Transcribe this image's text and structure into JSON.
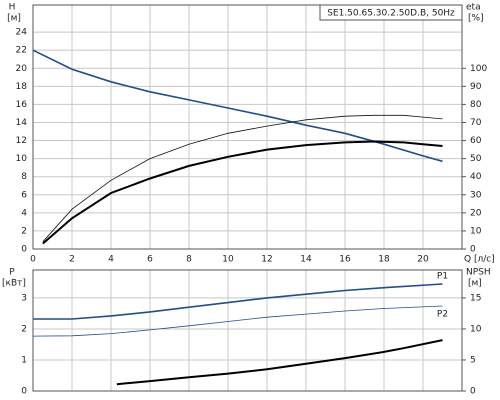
{
  "chart_data": [
    {
      "type": "line",
      "title": "SE1.50.65.30.2.50D.B, 50Hz",
      "y_label": "H",
      "y_unit": "[м]",
      "y2_label": "eta",
      "y2_unit": "[%]",
      "x_label": "Q [л/с]",
      "xlim": [
        0,
        22
      ],
      "xticks": [
        0,
        2,
        4,
        6,
        8,
        10,
        12,
        14,
        16,
        18,
        20
      ],
      "ylim": [
        0,
        27
      ],
      "yticks": [
        0,
        2,
        4,
        6,
        8,
        10,
        12,
        14,
        16,
        18,
        20,
        22,
        24
      ],
      "y2lim": [
        0,
        135
      ],
      "y2ticks": [
        0,
        10,
        20,
        30,
        40,
        50,
        60,
        70,
        80,
        90,
        100
      ],
      "grid": true,
      "series": [
        {
          "color": "#1f4e8c",
          "linewidth": 1.6,
          "x": [
            0,
            2,
            4,
            6,
            8,
            10,
            12,
            14,
            16,
            18,
            20,
            21
          ],
          "values": [
            22,
            19.9,
            18.5,
            17.4,
            16.5,
            15.6,
            14.7,
            13.7,
            12.8,
            11.6,
            10.3,
            9.7
          ]
        },
        {
          "color": "#111111",
          "linewidth": 0.8,
          "axis": "y2",
          "x": [
            0.5,
            2,
            4,
            6,
            8,
            10,
            12,
            14,
            16,
            17.5,
            19,
            20,
            21
          ],
          "values": [
            4,
            22,
            38,
            50,
            58,
            64,
            68,
            71.5,
            73.5,
            74,
            74,
            73,
            72
          ]
        },
        {
          "color": "#000000",
          "linewidth": 2,
          "axis": "y2",
          "x": [
            0.5,
            2,
            4,
            6,
            8,
            10,
            12,
            14,
            16,
            17.5,
            19,
            20,
            21
          ],
          "values": [
            3,
            17,
            31,
            39,
            46,
            51,
            55,
            57.5,
            59,
            59.5,
            59,
            58,
            57
          ]
        }
      ]
    },
    {
      "type": "line",
      "y_label": "P",
      "y_unit": "[кВт]",
      "y2_label": "NPSH",
      "y2_unit": "[м]",
      "xlim": [
        0,
        22
      ],
      "xticks": [
        0,
        2,
        4,
        6,
        8,
        10,
        12,
        14,
        16,
        18,
        20
      ],
      "ylim": [
        0,
        3.9
      ],
      "yticks": [
        0,
        1,
        2,
        3
      ],
      "y2lim": [
        0,
        19.5
      ],
      "y2ticks": [
        0,
        5,
        10,
        15
      ],
      "grid": true,
      "series": [
        {
          "name": "P1",
          "color": "#1f4e8c",
          "linewidth": 1.6,
          "x": [
            0,
            2,
            4,
            6,
            8,
            10,
            12,
            14,
            16,
            18,
            21
          ],
          "values": [
            2.32,
            2.32,
            2.42,
            2.55,
            2.7,
            2.85,
            3.0,
            3.12,
            3.24,
            3.33,
            3.45
          ]
        },
        {
          "name": "P2",
          "color": "#1f4e8c",
          "linewidth": 0.8,
          "x": [
            0,
            2,
            4,
            6,
            8,
            10,
            12,
            14,
            16,
            18,
            21
          ],
          "values": [
            1.77,
            1.78,
            1.85,
            1.97,
            2.1,
            2.24,
            2.38,
            2.48,
            2.58,
            2.66,
            2.74
          ]
        },
        {
          "color": "#000000",
          "linewidth": 2,
          "axis": "y2",
          "x": [
            4.3,
            6,
            8,
            10,
            12,
            14,
            16,
            18,
            19,
            21
          ],
          "values": [
            1.1,
            1.6,
            2.2,
            2.8,
            3.5,
            4.4,
            5.3,
            6.3,
            6.9,
            8.2
          ]
        }
      ]
    }
  ]
}
